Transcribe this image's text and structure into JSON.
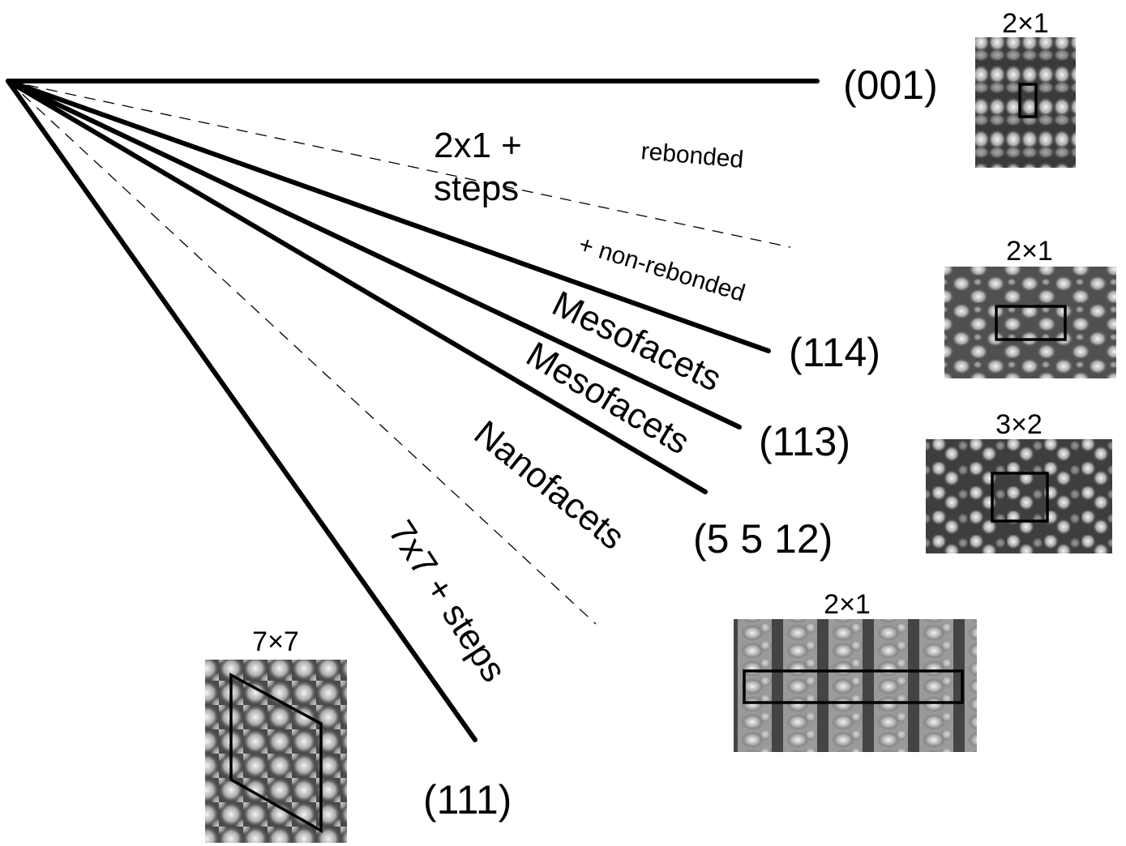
{
  "surfaces": [
    {
      "label": "(001)",
      "reconstruction": "2×1"
    },
    {
      "label": "(114)",
      "reconstruction": "2×1"
    },
    {
      "label": "(113)",
      "reconstruction": "3×2"
    },
    {
      "label": "(5 5 12)",
      "reconstruction": "2×1"
    },
    {
      "label": "(111)",
      "reconstruction": "7×7"
    }
  ],
  "regions": {
    "steps_2x1": [
      "2x1 +",
      "steps"
    ],
    "rebonded": "rebonded",
    "non_rebonded": "+ non-rebonded",
    "mesofacets_114_113": "Mesofacets",
    "mesofacets_113_5512": "Mesofacets",
    "nanofacets": "Nanofacets",
    "steps_7x7": "7x7 + steps"
  }
}
